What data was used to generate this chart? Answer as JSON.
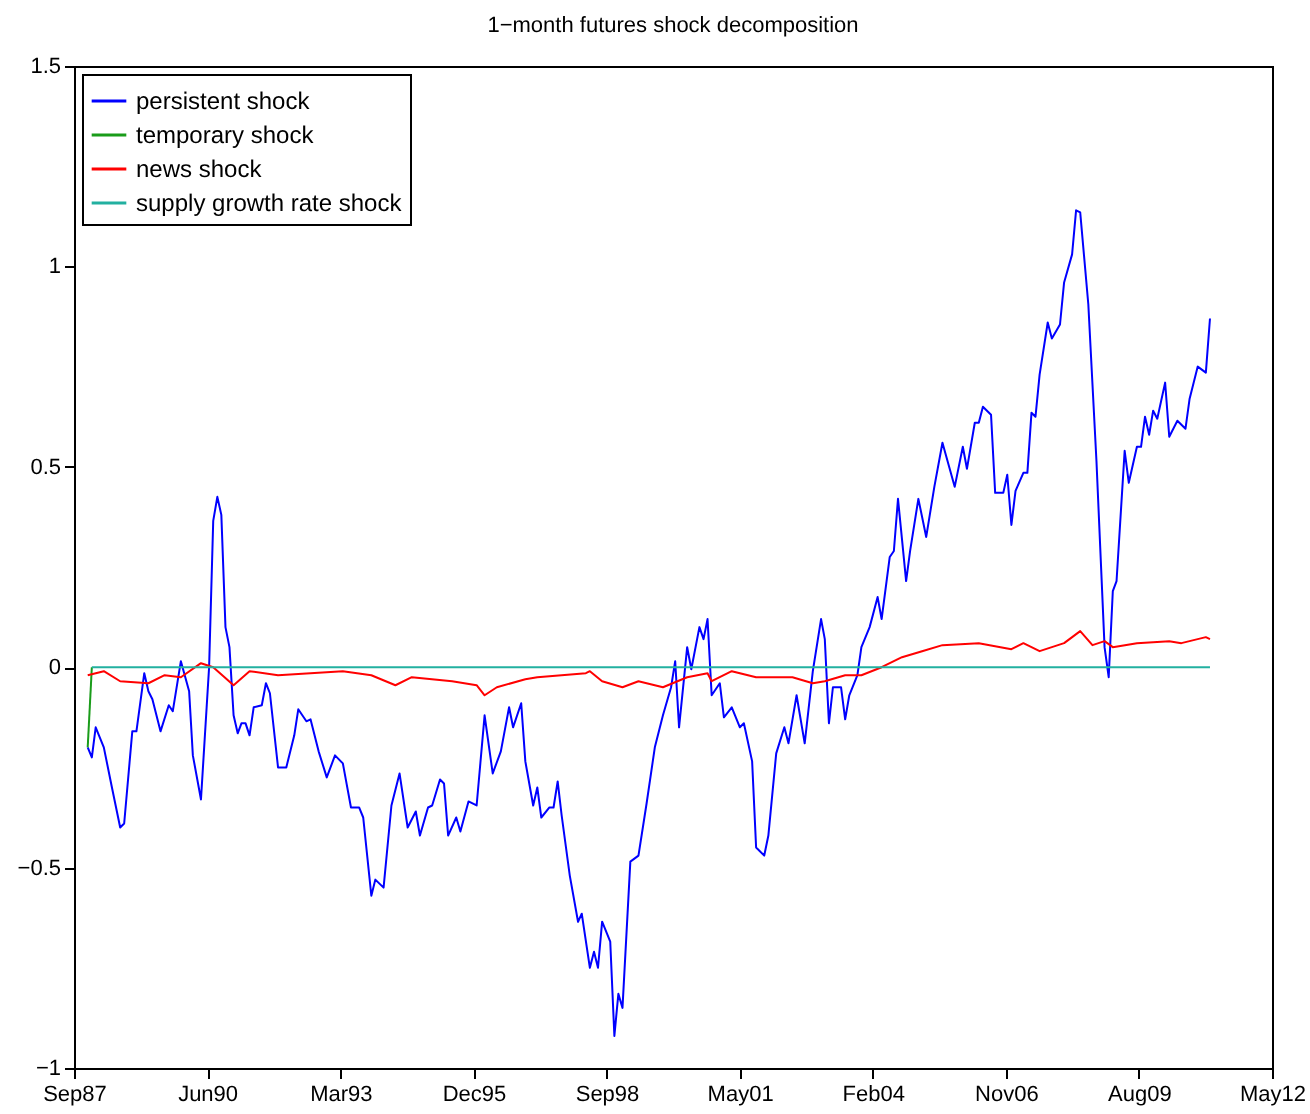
{
  "chart_data": {
    "type": "line",
    "title": "1−month futures shock decomposition",
    "xlim": [
      "1987-09-20",
      "2012-05-12"
    ],
    "xticks": [
      {
        "value": "1987-09-20",
        "label": "Sep87"
      },
      {
        "value": "1990-06-16",
        "label": "Jun90"
      },
      {
        "value": "1993-03-13",
        "label": "Mar93"
      },
      {
        "value": "1995-12-08",
        "label": "Dec95"
      },
      {
        "value": "1998-09-03",
        "label": "Sep98"
      },
      {
        "value": "2001-05-30",
        "label": "May01"
      },
      {
        "value": "2004-02-24",
        "label": "Feb04"
      },
      {
        "value": "2006-11-20",
        "label": "Nov06"
      },
      {
        "value": "2009-08-16",
        "label": "Aug09"
      },
      {
        "value": "2012-05-12",
        "label": "May12"
      }
    ],
    "ylim": [
      -1,
      1.5
    ],
    "yticks": [
      -1,
      -0.5,
      0,
      0.5,
      1,
      1.5
    ],
    "grid": false,
    "legend": "top left",
    "line_style": "solid",
    "marker": "none",
    "series": [
      {
        "name": "persistent shock",
        "color": "#0000ff",
        "x": [
          "1988-01",
          "1988-02",
          "1988-03",
          "1988-05",
          "1988-07",
          "1988-09",
          "1988-10",
          "1988-12",
          "1989-01",
          "1989-03",
          "1989-04",
          "1989-05",
          "1989-07",
          "1989-09",
          "1989-10",
          "1989-12",
          "1990-02",
          "1990-03",
          "1990-05",
          "1990-07",
          "1990-08",
          "1990-09",
          "1990-10",
          "1990-11",
          "1990-12",
          "1991-01",
          "1991-02",
          "1991-03",
          "1991-04",
          "1991-05",
          "1991-06",
          "1991-08",
          "1991-09",
          "1991-10",
          "1991-12",
          "1992-02",
          "1992-04",
          "1992-05",
          "1992-07",
          "1992-08",
          "1992-10",
          "1992-12",
          "1993-02",
          "1993-04",
          "1993-06",
          "1993-08",
          "1993-09",
          "1993-11",
          "1993-12",
          "1994-02",
          "1994-04",
          "1994-06",
          "1994-08",
          "1994-10",
          "1994-11",
          "1995-01",
          "1995-02",
          "1995-04",
          "1995-05",
          "1995-06",
          "1995-08",
          "1995-09",
          "1995-11",
          "1996-01",
          "1996-03",
          "1996-05",
          "1996-07",
          "1996-09",
          "1996-10",
          "1996-12",
          "1997-01",
          "1997-03",
          "1997-04",
          "1997-05",
          "1997-07",
          "1997-08",
          "1997-09",
          "1997-10",
          "1997-12",
          "1998-02",
          "1998-03",
          "1998-05",
          "1998-06",
          "1998-07",
          "1998-08",
          "1998-10",
          "1998-11",
          "1998-12",
          "1999-01",
          "1999-03",
          "1999-05",
          "1999-07",
          "1999-09",
          "1999-11",
          "2000-01",
          "2000-02",
          "2000-03",
          "2000-05",
          "2000-06",
          "2000-08",
          "2000-09",
          "2000-10",
          "2000-11",
          "2001-01",
          "2001-02",
          "2001-04",
          "2001-06",
          "2001-07",
          "2001-09",
          "2001-10",
          "2001-12",
          "2002-01",
          "2002-03",
          "2002-05",
          "2002-06",
          "2002-08",
          "2002-10",
          "2002-12",
          "2003-02",
          "2003-03",
          "2003-04",
          "2003-05",
          "2003-07",
          "2003-08",
          "2003-09",
          "2003-11",
          "2003-12",
          "2004-02",
          "2004-04",
          "2004-05",
          "2004-07",
          "2004-08",
          "2004-09",
          "2004-11",
          "2004-12",
          "2005-02",
          "2005-04",
          "2005-06",
          "2005-08",
          "2005-11",
          "2006-01",
          "2006-02",
          "2006-04",
          "2006-05",
          "2006-06",
          "2006-08",
          "2006-09",
          "2006-11",
          "2006-12",
          "2007-01",
          "2007-02",
          "2007-04",
          "2007-05",
          "2007-06",
          "2007-07",
          "2007-08",
          "2007-10",
          "2007-11",
          "2008-01",
          "2008-02",
          "2008-04",
          "2008-05",
          "2008-06",
          "2008-08",
          "2008-10",
          "2008-12",
          "2009-01",
          "2009-02",
          "2009-03",
          "2009-05",
          "2009-06",
          "2009-08",
          "2009-09",
          "2009-10",
          "2009-11",
          "2009-12",
          "2010-01",
          "2010-03",
          "2010-04",
          "2010-06",
          "2010-08",
          "2010-09",
          "2010-11",
          "2011-01",
          "2011-02"
        ],
        "values": [
          -0.2,
          -0.225,
          -0.15,
          -0.2,
          -0.3,
          -0.4,
          -0.39,
          -0.16,
          -0.16,
          -0.015,
          -0.06,
          -0.08,
          -0.16,
          -0.095,
          -0.11,
          0.015,
          -0.06,
          -0.22,
          -0.33,
          0,
          0.365,
          0.425,
          0.38,
          0.1,
          0.05,
          -0.12,
          -0.165,
          -0.14,
          -0.14,
          -0.17,
          -0.1,
          -0.095,
          -0.04,
          -0.065,
          -0.25,
          -0.25,
          -0.17,
          -0.105,
          -0.135,
          -0.13,
          -0.21,
          -0.275,
          -0.22,
          -0.24,
          -0.35,
          -0.35,
          -0.375,
          -0.57,
          -0.53,
          -0.55,
          -0.345,
          -0.265,
          -0.4,
          -0.36,
          -0.42,
          -0.35,
          -0.345,
          -0.28,
          -0.29,
          -0.42,
          -0.375,
          -0.41,
          -0.335,
          -0.345,
          -0.12,
          -0.265,
          -0.21,
          -0.1,
          -0.15,
          -0.09,
          -0.235,
          -0.345,
          -0.3,
          -0.375,
          -0.35,
          -0.35,
          -0.285,
          -0.37,
          -0.52,
          -0.635,
          -0.615,
          -0.75,
          -0.71,
          -0.75,
          -0.635,
          -0.685,
          -0.92,
          -0.815,
          -0.85,
          -0.485,
          -0.47,
          -0.34,
          -0.2,
          -0.12,
          -0.05,
          0.015,
          -0.15,
          0.05,
          -0.005,
          0.1,
          0.07,
          0.12,
          -0.07,
          -0.04,
          -0.125,
          -0.1,
          -0.15,
          -0.14,
          -0.235,
          -0.45,
          -0.47,
          -0.42,
          -0.215,
          -0.15,
          -0.19,
          -0.07,
          -0.19,
          -0.01,
          0.12,
          0.07,
          -0.14,
          -0.05,
          -0.05,
          -0.13,
          -0.07,
          -0.02,
          0.05,
          0.1,
          0.175,
          0.12,
          0.275,
          0.29,
          0.42,
          0.215,
          0.29,
          0.42,
          0.325,
          0.45,
          0.56,
          0.45,
          0.55,
          0.495,
          0.61,
          0.61,
          0.65,
          0.63,
          0.435,
          0.435,
          0.48,
          0.355,
          0.44,
          0.485,
          0.485,
          0.635,
          0.625,
          0.73,
          0.86,
          0.82,
          0.855,
          0.96,
          1.03,
          1.14,
          1.135,
          0.905,
          0.515,
          0.05,
          -0.025,
          0.19,
          0.215,
          0.54,
          0.46,
          0.55,
          0.55,
          0.625,
          0.58,
          0.64,
          0.62,
          0.71,
          0.575,
          0.615,
          0.595,
          0.67,
          0.75,
          0.735,
          0.87
        ]
      },
      {
        "name": "temporary shock",
        "color": "#1a9c1a",
        "x": [
          "1988-01",
          "1988-02"
        ],
        "values": [
          -0.2,
          0
        ]
      },
      {
        "name": "news shock",
        "color": "#ff0000",
        "x": [
          "1988-01",
          "1988-05",
          "1988-09",
          "1989-04",
          "1989-08",
          "1989-12",
          "1990-05",
          "1990-08",
          "1991-01",
          "1991-05",
          "1991-12",
          "1993-04",
          "1993-11",
          "1994-05",
          "1994-09",
          "1995-07",
          "1996-01",
          "1996-03",
          "1996-06",
          "1997-01",
          "1997-04",
          "1998-04",
          "1998-05",
          "1998-08",
          "1999-01",
          "1999-05",
          "1999-11",
          "2000-05",
          "2000-10",
          "2000-11",
          "2001-04",
          "2001-10",
          "2002-07",
          "2002-12",
          "2003-03",
          "2003-08",
          "2003-12",
          "2004-05",
          "2004-10",
          "2005-03",
          "2005-08",
          "2006-05",
          "2007-01",
          "2007-04",
          "2007-08",
          "2008-02",
          "2008-06",
          "2008-09",
          "2008-12",
          "2009-02",
          "2009-08",
          "2010-04",
          "2010-07",
          "2011-01",
          "2011-02"
        ],
        "values": [
          -0.02,
          -0.01,
          -0.035,
          -0.04,
          -0.02,
          -0.025,
          0.01,
          0,
          -0.045,
          -0.01,
          -0.02,
          -0.01,
          -0.02,
          -0.045,
          -0.025,
          -0.035,
          -0.045,
          -0.07,
          -0.05,
          -0.03,
          -0.025,
          -0.015,
          -0.01,
          -0.035,
          -0.05,
          -0.035,
          -0.05,
          -0.025,
          -0.015,
          -0.035,
          -0.01,
          -0.025,
          -0.025,
          -0.04,
          -0.035,
          -0.02,
          -0.02,
          0,
          0.025,
          0.04,
          0.055,
          0.06,
          0.045,
          0.06,
          0.04,
          0.06,
          0.09,
          0.055,
          0.065,
          0.05,
          0.06,
          0.065,
          0.06,
          0.075,
          0.07
        ]
      },
      {
        "name": "supply growth rate shock",
        "color": "#22b0a0",
        "x": [
          "1988-02",
          "2011-02"
        ],
        "values": [
          0,
          0
        ]
      }
    ]
  }
}
